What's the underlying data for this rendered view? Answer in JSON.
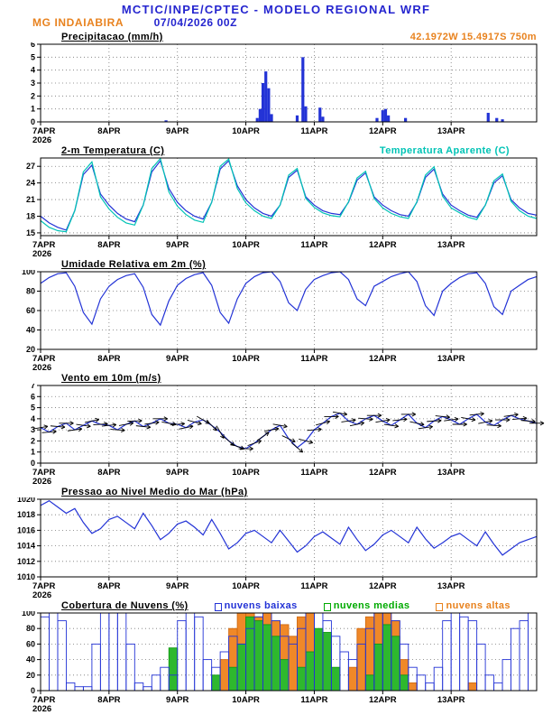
{
  "header": {
    "title": "MCTIC/INPE/CPTEC - MODELO REGIONAL WRF",
    "station": "MG INDAIABIRA",
    "run": "07/04/2026 00Z",
    "location": "42.1972W 15.4917S 750m"
  },
  "colors": {
    "header_blue": "#2525cf",
    "accent_orange": "#e8821e",
    "line_blue": "#2333d6",
    "cyan": "#00c3b5",
    "green": "#00aa00"
  },
  "time": {
    "hours_total": 174,
    "step_h": 3,
    "ticks": [
      {
        "h": 0,
        "label": "7APR",
        "sublabel": "2026"
      },
      {
        "h": 24,
        "label": "8APR"
      },
      {
        "h": 48,
        "label": "9APR"
      },
      {
        "h": 72,
        "label": "10APR"
      },
      {
        "h": 96,
        "label": "11APR"
      },
      {
        "h": 120,
        "label": "12APR"
      },
      {
        "h": 144,
        "label": "13APR"
      }
    ]
  },
  "chart_data": [
    {
      "id": "precip",
      "type": "bar",
      "title": "Precipitacao (mm/h)",
      "ylabel": "mm/h",
      "ylim": [
        0,
        6
      ],
      "yticks": [
        0,
        1,
        2,
        3,
        4,
        5,
        6
      ],
      "color": "#2333d6",
      "bars": [
        {
          "h": 44,
          "v": 0.12
        },
        {
          "h": 76,
          "v": 0.3
        },
        {
          "h": 77,
          "v": 1.0
        },
        {
          "h": 78,
          "v": 3.0
        },
        {
          "h": 79,
          "v": 3.9
        },
        {
          "h": 80,
          "v": 2.6
        },
        {
          "h": 81,
          "v": 0.6
        },
        {
          "h": 90,
          "v": 0.5
        },
        {
          "h": 92,
          "v": 5.0
        },
        {
          "h": 93,
          "v": 1.2
        },
        {
          "h": 98,
          "v": 1.1
        },
        {
          "h": 99,
          "v": 0.4
        },
        {
          "h": 118,
          "v": 0.3
        },
        {
          "h": 120,
          "v": 0.9
        },
        {
          "h": 121,
          "v": 1.0
        },
        {
          "h": 122,
          "v": 0.5
        },
        {
          "h": 128,
          "v": 0.3
        },
        {
          "h": 157,
          "v": 0.7
        },
        {
          "h": 160,
          "v": 0.3
        },
        {
          "h": 162,
          "v": 0.2
        }
      ]
    },
    {
      "id": "temperature",
      "type": "line",
      "title": "2-m Temperatura (C)",
      "right_label": "Temperatura Aparente (C)",
      "ylim": [
        14.5,
        28.5
      ],
      "yticks": [
        15,
        18,
        21,
        24,
        27
      ],
      "series": [
        {
          "name": "2-m Temperatura",
          "color": "#2333d6",
          "values": [
            18,
            16.8,
            16,
            15.5,
            19,
            25.5,
            27.2,
            22,
            20,
            18.5,
            17.5,
            17,
            20,
            26,
            28,
            23,
            20.5,
            19,
            18,
            17.5,
            20.5,
            26.5,
            28,
            23.5,
            21,
            19.5,
            18.5,
            18,
            20,
            25,
            26.3,
            21.5,
            20,
            19,
            18.5,
            18.3,
            20.5,
            24.5,
            25.8,
            21.5,
            20,
            19,
            18.3,
            18,
            20.5,
            25,
            26.5,
            22,
            20,
            19,
            18.2,
            17.8,
            20,
            24,
            25.3,
            21,
            19.5,
            18.5,
            18.2
          ]
        },
        {
          "name": "Temperatura Aparente",
          "color": "#00c3b5",
          "values": [
            17.2,
            16,
            15.4,
            15.2,
            19,
            26,
            27.8,
            21.5,
            19.3,
            17.8,
            16.8,
            16.4,
            20,
            26.6,
            28.4,
            22.4,
            19.8,
            18.3,
            17.3,
            16.9,
            20.5,
            27,
            28.3,
            23,
            20.4,
            19,
            18,
            17.6,
            20,
            25.4,
            26.6,
            21.2,
            19.6,
            18.6,
            18.1,
            17.9,
            20.6,
            24.9,
            26.1,
            21.2,
            19.5,
            18.5,
            17.9,
            17.6,
            20.6,
            25.4,
            26.9,
            21.6,
            19.5,
            18.6,
            17.8,
            17.4,
            20,
            24.4,
            25.6,
            20.7,
            19,
            18,
            17.6
          ]
        }
      ]
    },
    {
      "id": "humidity",
      "type": "line",
      "title": "Umidade Relativa em 2m (%)",
      "ylim": [
        20,
        100
      ],
      "yticks": [
        20,
        40,
        60,
        80,
        100
      ],
      "series": [
        {
          "name": "Umidade Relativa",
          "color": "#2333d6",
          "values": [
            88,
            94,
            98,
            99,
            85,
            58,
            46,
            72,
            85,
            92,
            96,
            98,
            84,
            56,
            45,
            70,
            86,
            93,
            97,
            99,
            86,
            58,
            47,
            72,
            88,
            95,
            99,
            100,
            90,
            68,
            60,
            82,
            92,
            96,
            99,
            100,
            92,
            72,
            65,
            85,
            90,
            95,
            98,
            100,
            90,
            65,
            55,
            80,
            88,
            94,
            98,
            99,
            88,
            64,
            56,
            80,
            86,
            92,
            95
          ]
        }
      ]
    },
    {
      "id": "wind",
      "type": "line-barbs",
      "title": "Vento em 10m (m/s)",
      "ylim": [
        0,
        7
      ],
      "yticks": [
        0,
        1,
        2,
        3,
        4,
        5,
        6,
        7
      ],
      "barb_dirs_deg": [
        10,
        5,
        -5,
        0,
        8,
        -8,
        12,
        4,
        6,
        -4,
        10,
        2,
        -6,
        8,
        0,
        -10,
        5,
        12,
        -15,
        -30,
        -45,
        -60,
        -40,
        -20,
        0,
        20,
        35,
        10,
        -10,
        -25,
        -40,
        -15,
        5,
        15,
        0,
        -10,
        8,
        12,
        -5,
        0,
        10,
        -8,
        6,
        0,
        -12,
        8,
        4,
        -6,
        8,
        0,
        -10,
        6,
        12,
        -4,
        0,
        8,
        5,
        -5,
        0
      ],
      "series": [
        {
          "name": "Vento",
          "color": "#2333d6",
          "values": [
            3.2,
            2.8,
            3.3,
            3.6,
            3,
            3.4,
            3.8,
            3.5,
            3.4,
            3,
            3.5,
            3.8,
            3.3,
            3.6,
            4,
            3.6,
            3.5,
            3.2,
            3.7,
            3.9,
            3.4,
            2.8,
            2,
            1.5,
            1.3,
            1.8,
            2.4,
            3,
            3.4,
            2.2,
            1.4,
            2,
            3,
            3.6,
            4.2,
            4.5,
            3.8,
            3.5,
            4,
            4.3,
            3.8,
            3.4,
            3.9,
            4.4,
            3.6,
            3.2,
            3.8,
            4.2,
            3.9,
            3.5,
            4,
            4.4,
            3.7,
            3.4,
            3.9,
            4.3,
            4,
            3.8,
            3.6
          ]
        }
      ]
    },
    {
      "id": "pressure",
      "type": "line",
      "title": "Pressao ao Nivel Medio do Mar (hPa)",
      "ylim": [
        1010,
        1020
      ],
      "yticks": [
        1010,
        1012,
        1014,
        1016,
        1018,
        1020
      ],
      "series": [
        {
          "name": "Pressao",
          "color": "#2333d6",
          "values": [
            1019.2,
            1019.8,
            1019,
            1018.2,
            1018.8,
            1017,
            1015.6,
            1016.2,
            1017.4,
            1017.8,
            1017,
            1016.2,
            1018.2,
            1016.6,
            1014.8,
            1015.6,
            1016.8,
            1017.2,
            1016.4,
            1015.4,
            1017.4,
            1015.6,
            1013.6,
            1014.4,
            1015.6,
            1016,
            1015.2,
            1014.4,
            1016,
            1014.6,
            1013.2,
            1014,
            1015.2,
            1015.8,
            1015,
            1014.2,
            1016.4,
            1014.8,
            1013.4,
            1014.2,
            1015.4,
            1016,
            1015.2,
            1014.4,
            1016.4,
            1014.9,
            1013.7,
            1014.4,
            1015.2,
            1015.6,
            1014.8,
            1014,
            1015.8,
            1014.2,
            1012.8,
            1013.6,
            1014.4,
            1014.8,
            1015.2
          ]
        }
      ]
    },
    {
      "id": "clouds",
      "type": "cloud",
      "title": "Cobertura de Nuvens (%)",
      "ylim": [
        0,
        100
      ],
      "yticks": [
        0,
        20,
        40,
        60,
        80,
        100
      ],
      "legend": [
        {
          "label": "nuvens baixas",
          "color": "#2333d6"
        },
        {
          "label": "nuvens medias",
          "color": "#00aa00"
        },
        {
          "label": "nuvens altas",
          "color": "#e8821e"
        }
      ],
      "series": [
        {
          "name": "nuvens-altas",
          "color": "#d06a10",
          "fill": "#f08828",
          "values": [
            0,
            0,
            0,
            0,
            0,
            0,
            0,
            0,
            0,
            0,
            0,
            0,
            0,
            0,
            0,
            0,
            0,
            0,
            0,
            0,
            0,
            40,
            80,
            100,
            100,
            95,
            100,
            90,
            85,
            70,
            95,
            100,
            60,
            30,
            20,
            0,
            30,
            80,
            95,
            100,
            100,
            90,
            40,
            10,
            0,
            0,
            0,
            0,
            0,
            0,
            10,
            0,
            0,
            0,
            0,
            0,
            0,
            0
          ]
        },
        {
          "name": "nuvens-medias",
          "color": "#0f9910",
          "fill": "#2eb82e",
          "values": [
            0,
            0,
            0,
            0,
            0,
            0,
            0,
            0,
            0,
            0,
            0,
            0,
            0,
            0,
            0,
            55,
            0,
            0,
            0,
            0,
            20,
            0,
            30,
            60,
            95,
            90,
            85,
            70,
            40,
            0,
            30,
            50,
            80,
            75,
            30,
            0,
            0,
            0,
            20,
            60,
            85,
            70,
            20,
            0,
            0,
            0,
            0,
            0,
            0,
            0,
            0,
            0,
            0,
            0,
            0,
            0,
            0,
            0
          ]
        },
        {
          "name": "nuvens-baixas",
          "color": "#2333d6",
          "fill": "none",
          "values": [
            95,
            100,
            90,
            10,
            5,
            5,
            60,
            100,
            100,
            100,
            60,
            10,
            5,
            20,
            30,
            20,
            90,
            100,
            95,
            40,
            30,
            50,
            70,
            60,
            80,
            95,
            100,
            90,
            70,
            60,
            80,
            100,
            100,
            90,
            70,
            50,
            40,
            60,
            80,
            100,
            100,
            90,
            60,
            30,
            20,
            10,
            30,
            90,
            100,
            95,
            90,
            60,
            20,
            10,
            40,
            80,
            90,
            100
          ]
        }
      ]
    }
  ]
}
